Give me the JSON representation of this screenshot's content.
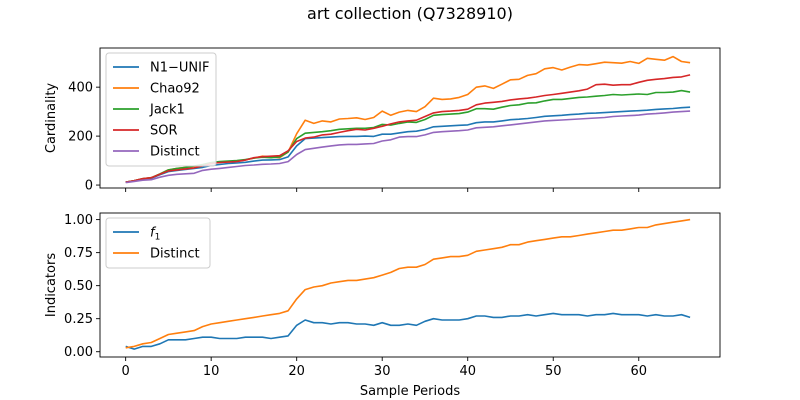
{
  "figure": {
    "title": "art collection (Q7328910)",
    "xlabel": "Sample Periods"
  },
  "chart_data": [
    {
      "type": "line",
      "ylabel": "Cardinality",
      "xlim": [
        -3,
        69.5
      ],
      "ylim": [
        -12,
        560
      ],
      "xticks": [
        0,
        10,
        20,
        30,
        40,
        50,
        60
      ],
      "yticks": [
        0,
        200,
        400
      ],
      "grid": false,
      "legend_position": "top-left",
      "series": [
        {
          "name": "N1−UNIF",
          "color": "#1f77b4",
          "x": [
            0,
            1,
            2,
            3,
            4,
            5,
            6,
            7,
            8,
            9,
            10,
            11,
            12,
            13,
            14,
            15,
            16,
            17,
            18,
            19,
            20,
            21,
            22,
            23,
            24,
            25,
            26,
            27,
            28,
            29,
            30,
            31,
            32,
            33,
            34,
            35,
            36,
            37,
            38,
            39,
            40,
            41,
            42,
            43,
            44,
            45,
            46,
            47,
            48,
            49,
            50,
            51,
            52,
            53,
            54,
            55,
            56,
            57,
            58,
            59,
            60,
            61,
            62,
            63,
            64,
            65,
            66
          ],
          "values": [
            12,
            17,
            25,
            28,
            42,
            55,
            60,
            64,
            68,
            72,
            80,
            84,
            88,
            90,
            93,
            98,
            102,
            103,
            104,
            115,
            160,
            190,
            192,
            194,
            196,
            198,
            199,
            199,
            200,
            199,
            208,
            208,
            213,
            218,
            220,
            227,
            238,
            240,
            242,
            244,
            246,
            255,
            258,
            258,
            262,
            267,
            269,
            272,
            276,
            281,
            283,
            285,
            288,
            290,
            293,
            294,
            296,
            298,
            300,
            302,
            304,
            306,
            309,
            311,
            313,
            316,
            318
          ]
        },
        {
          "name": "Chao92",
          "color": "#ff7f0e",
          "x": [
            0,
            1,
            2,
            3,
            4,
            5,
            6,
            7,
            8,
            9,
            10,
            11,
            12,
            13,
            14,
            15,
            16,
            17,
            18,
            19,
            20,
            21,
            22,
            23,
            24,
            25,
            26,
            27,
            28,
            29,
            30,
            31,
            32,
            33,
            34,
            35,
            36,
            37,
            38,
            39,
            40,
            41,
            42,
            43,
            44,
            45,
            46,
            47,
            48,
            49,
            50,
            51,
            52,
            53,
            54,
            55,
            56,
            57,
            58,
            59,
            60,
            61,
            62,
            63,
            64,
            65,
            66
          ],
          "values": [
            12,
            18,
            26,
            30,
            45,
            62,
            68,
            72,
            76,
            80,
            88,
            92,
            96,
            98,
            103,
            110,
            118,
            115,
            112,
            135,
            210,
            265,
            252,
            262,
            258,
            270,
            272,
            275,
            268,
            276,
            302,
            285,
            298,
            305,
            300,
            320,
            355,
            350,
            352,
            358,
            370,
            400,
            405,
            395,
            412,
            430,
            432,
            448,
            455,
            475,
            480,
            470,
            482,
            492,
            490,
            496,
            502,
            500,
            498,
            505,
            497,
            518,
            514,
            510,
            525,
            505,
            500
          ]
        },
        {
          "name": "Jack1",
          "color": "#2ca02c",
          "x": [
            0,
            1,
            2,
            3,
            4,
            5,
            6,
            7,
            8,
            9,
            10,
            11,
            12,
            13,
            14,
            15,
            16,
            17,
            18,
            19,
            20,
            21,
            22,
            23,
            24,
            25,
            26,
            27,
            28,
            29,
            30,
            31,
            32,
            33,
            34,
            35,
            36,
            37,
            38,
            39,
            40,
            41,
            42,
            43,
            44,
            45,
            46,
            47,
            48,
            49,
            50,
            51,
            52,
            53,
            54,
            55,
            56,
            57,
            58,
            59,
            60,
            61,
            62,
            63,
            64,
            65,
            66
          ],
          "values": [
            12,
            18,
            26,
            30,
            45,
            62,
            68,
            72,
            78,
            84,
            92,
            96,
            98,
            100,
            104,
            110,
            114,
            112,
            115,
            135,
            190,
            212,
            215,
            218,
            222,
            228,
            230,
            232,
            232,
            235,
            248,
            245,
            252,
            258,
            256,
            268,
            285,
            288,
            290,
            292,
            298,
            312,
            312,
            310,
            318,
            325,
            328,
            335,
            336,
            344,
            350,
            350,
            354,
            358,
            360,
            363,
            366,
            370,
            368,
            370,
            372,
            370,
            378,
            378,
            380,
            386,
            380
          ]
        },
        {
          "name": "SOR",
          "color": "#d62728",
          "x": [
            0,
            1,
            2,
            3,
            4,
            5,
            6,
            7,
            8,
            9,
            10,
            11,
            12,
            13,
            14,
            15,
            16,
            17,
            18,
            19,
            20,
            21,
            22,
            23,
            24,
            25,
            26,
            27,
            28,
            29,
            30,
            31,
            32,
            33,
            34,
            35,
            36,
            37,
            38,
            39,
            40,
            41,
            42,
            43,
            44,
            45,
            46,
            47,
            48,
            49,
            50,
            51,
            52,
            53,
            54,
            55,
            56,
            57,
            58,
            59,
            60,
            61,
            62,
            63,
            64,
            65,
            66
          ],
          "values": [
            12,
            18,
            26,
            30,
            44,
            58,
            62,
            66,
            70,
            78,
            88,
            92,
            94,
            96,
            102,
            112,
            116,
            118,
            120,
            140,
            178,
            192,
            196,
            205,
            208,
            215,
            222,
            228,
            225,
            232,
            240,
            250,
            258,
            262,
            265,
            280,
            295,
            300,
            302,
            305,
            310,
            328,
            335,
            338,
            342,
            348,
            352,
            355,
            360,
            366,
            370,
            375,
            380,
            385,
            392,
            410,
            412,
            408,
            410,
            410,
            420,
            428,
            432,
            435,
            440,
            442,
            450
          ]
        },
        {
          "name": "Distinct",
          "color": "#9467bd",
          "x": [
            0,
            1,
            2,
            3,
            4,
            5,
            6,
            7,
            8,
            9,
            10,
            11,
            12,
            13,
            14,
            15,
            16,
            17,
            18,
            19,
            20,
            21,
            22,
            23,
            24,
            25,
            26,
            27,
            28,
            29,
            30,
            31,
            32,
            33,
            34,
            35,
            36,
            37,
            38,
            39,
            40,
            41,
            42,
            43,
            44,
            45,
            46,
            47,
            48,
            49,
            50,
            51,
            52,
            53,
            54,
            55,
            56,
            57,
            58,
            59,
            60,
            61,
            62,
            63,
            64,
            65,
            66
          ],
          "values": [
            10,
            15,
            20,
            22,
            32,
            40,
            44,
            46,
            48,
            60,
            65,
            68,
            72,
            76,
            80,
            82,
            85,
            86,
            88,
            96,
            125,
            145,
            150,
            155,
            160,
            164,
            166,
            166,
            168,
            170,
            180,
            185,
            196,
            198,
            198,
            205,
            215,
            218,
            220,
            222,
            225,
            234,
            236,
            238,
            242,
            246,
            250,
            254,
            258,
            262,
            264,
            266,
            268,
            270,
            272,
            274,
            276,
            280,
            282,
            284,
            286,
            290,
            292,
            295,
            298,
            300,
            302
          ]
        }
      ]
    },
    {
      "type": "line",
      "ylabel": "Indicators",
      "xlim": [
        -3,
        69.5
      ],
      "ylim": [
        -0.04,
        1.05
      ],
      "xticks": [
        0,
        10,
        20,
        30,
        40,
        50,
        60
      ],
      "yticks": [
        0.0,
        0.25,
        0.5,
        0.75,
        1.0
      ],
      "ytick_labels": [
        "0.00",
        "0.25",
        "0.50",
        "0.75",
        "1.00"
      ],
      "grid": false,
      "legend_position": "top-left",
      "series": [
        {
          "name": "f1",
          "color": "#1f77b4",
          "x": [
            0,
            1,
            2,
            3,
            4,
            5,
            6,
            7,
            8,
            9,
            10,
            11,
            12,
            13,
            14,
            15,
            16,
            17,
            18,
            19,
            20,
            21,
            22,
            23,
            24,
            25,
            26,
            27,
            28,
            29,
            30,
            31,
            32,
            33,
            34,
            35,
            36,
            37,
            38,
            39,
            40,
            41,
            42,
            43,
            44,
            45,
            46,
            47,
            48,
            49,
            50,
            51,
            52,
            53,
            54,
            55,
            56,
            57,
            58,
            59,
            60,
            61,
            62,
            63,
            64,
            65,
            66
          ],
          "values": [
            0.04,
            0.02,
            0.04,
            0.04,
            0.06,
            0.09,
            0.09,
            0.09,
            0.1,
            0.11,
            0.11,
            0.1,
            0.1,
            0.1,
            0.11,
            0.11,
            0.11,
            0.1,
            0.11,
            0.12,
            0.2,
            0.24,
            0.22,
            0.22,
            0.21,
            0.22,
            0.22,
            0.21,
            0.21,
            0.2,
            0.22,
            0.2,
            0.2,
            0.21,
            0.2,
            0.23,
            0.25,
            0.24,
            0.24,
            0.24,
            0.25,
            0.27,
            0.27,
            0.26,
            0.26,
            0.27,
            0.27,
            0.28,
            0.27,
            0.28,
            0.29,
            0.28,
            0.28,
            0.28,
            0.27,
            0.28,
            0.28,
            0.29,
            0.28,
            0.28,
            0.28,
            0.27,
            0.28,
            0.27,
            0.27,
            0.28,
            0.26
          ]
        },
        {
          "name": "Distinct",
          "color": "#ff7f0e",
          "x": [
            0,
            1,
            2,
            3,
            4,
            5,
            6,
            7,
            8,
            9,
            10,
            11,
            12,
            13,
            14,
            15,
            16,
            17,
            18,
            19,
            20,
            21,
            22,
            23,
            24,
            25,
            26,
            27,
            28,
            29,
            30,
            31,
            32,
            33,
            34,
            35,
            36,
            37,
            38,
            39,
            40,
            41,
            42,
            43,
            44,
            45,
            46,
            47,
            48,
            49,
            50,
            51,
            52,
            53,
            54,
            55,
            56,
            57,
            58,
            59,
            60,
            61,
            62,
            63,
            64,
            65,
            66
          ],
          "values": [
            0.03,
            0.04,
            0.06,
            0.07,
            0.1,
            0.13,
            0.14,
            0.15,
            0.16,
            0.19,
            0.21,
            0.22,
            0.23,
            0.24,
            0.25,
            0.26,
            0.27,
            0.28,
            0.29,
            0.31,
            0.4,
            0.47,
            0.49,
            0.5,
            0.52,
            0.53,
            0.54,
            0.54,
            0.55,
            0.56,
            0.58,
            0.6,
            0.63,
            0.64,
            0.64,
            0.66,
            0.7,
            0.71,
            0.72,
            0.72,
            0.73,
            0.76,
            0.77,
            0.78,
            0.79,
            0.81,
            0.81,
            0.83,
            0.84,
            0.85,
            0.86,
            0.87,
            0.87,
            0.88,
            0.89,
            0.9,
            0.91,
            0.92,
            0.92,
            0.93,
            0.94,
            0.94,
            0.96,
            0.97,
            0.98,
            0.99,
            1.0
          ]
        }
      ]
    }
  ]
}
